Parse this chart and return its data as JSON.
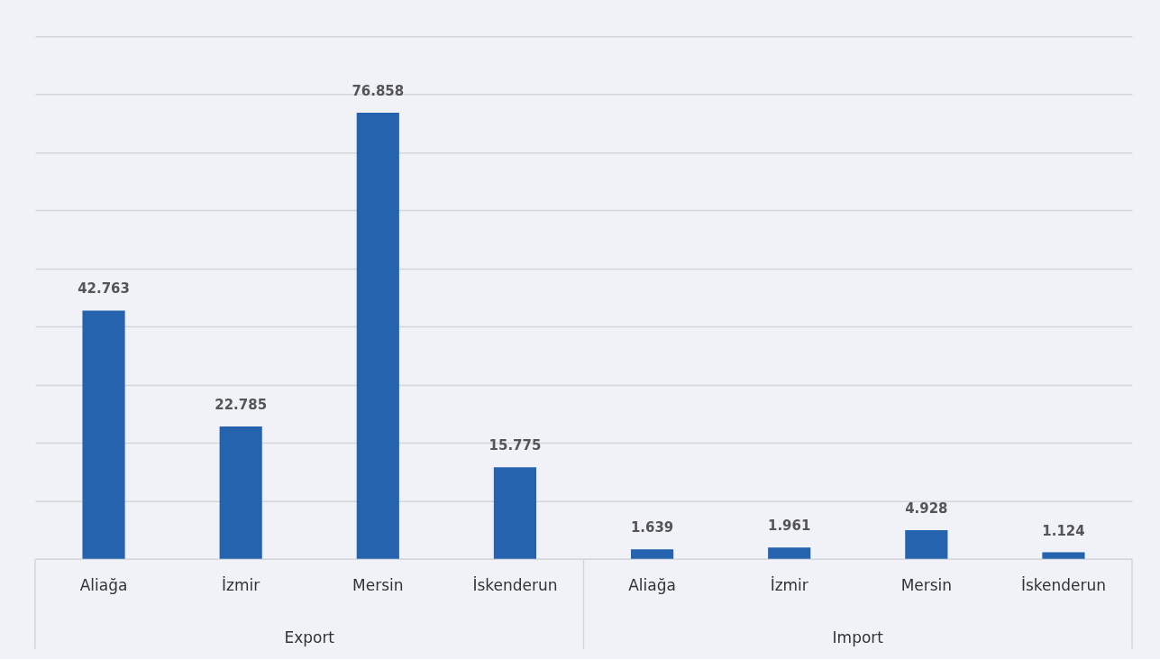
{
  "chart_data": {
    "type": "bar",
    "categories": [
      "Aliağa",
      "İzmir",
      "Mersin",
      "İskenderun",
      "Aliağa",
      "İzmir",
      "Mersin",
      "İskenderun"
    ],
    "values": [
      42.763,
      22.785,
      76.858,
      15.775,
      1.639,
      1.961,
      4.928,
      1.124
    ],
    "color": "#2563ae",
    "data_labels": true,
    "ylim": [
      0,
      90
    ],
    "yticks": [
      {
        "value": 0,
        "label": null
      },
      {
        "value": 10,
        "label": null
      },
      {
        "value": 20,
        "label": null
      },
      {
        "value": 30,
        "label": null
      },
      {
        "value": 40,
        "label": null
      },
      {
        "value": 50,
        "label": null
      },
      {
        "value": 60,
        "label": null
      },
      {
        "value": 70,
        "label": null
      },
      {
        "value": 80,
        "label": null
      },
      {
        "value": 90,
        "label": null
      }
    ],
    "grid": "y",
    "tick_labels": "x",
    "annotations": [
      "Export",
      "Import"
    ]
  }
}
